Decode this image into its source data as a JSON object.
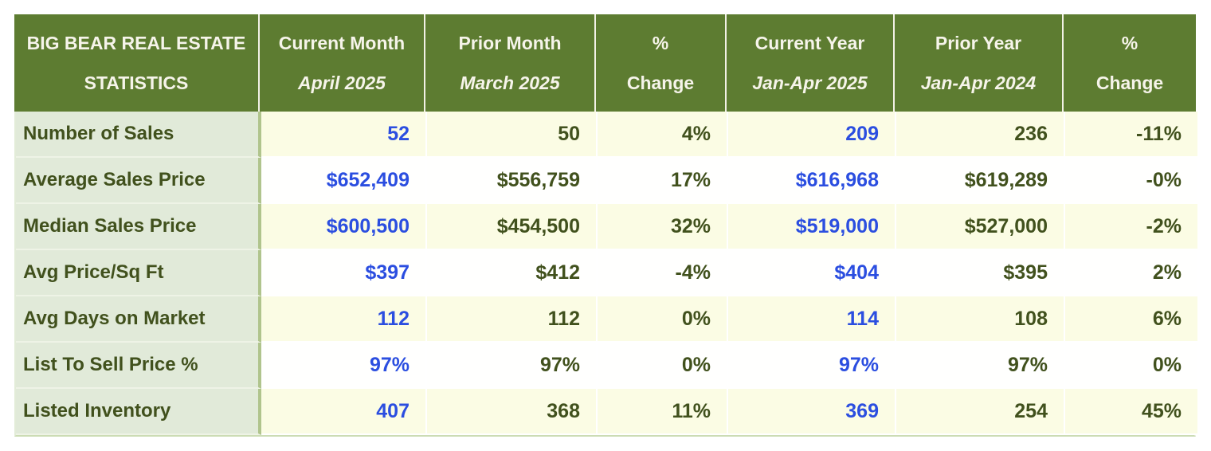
{
  "table": {
    "header": {
      "title_line1": "BIG BEAR REAL ESTATE",
      "title_line2": "STATISTICS",
      "columns": [
        {
          "label": "Current Month",
          "sub": "April 2025"
        },
        {
          "label": "Prior Month",
          "sub": "March 2025"
        },
        {
          "label": "%",
          "sub": "Change"
        },
        {
          "label": "Current Year",
          "sub": "Jan-Apr 2025"
        },
        {
          "label": "Prior Year",
          "sub": "Jan-Apr 2024"
        },
        {
          "label": "%",
          "sub": "Change"
        }
      ]
    },
    "rows": [
      {
        "label": "Number of Sales",
        "current_month": "52",
        "prior_month": "50",
        "pct_change_month": "4%",
        "current_year": "209",
        "prior_year": "236",
        "pct_change_year": "-11%"
      },
      {
        "label": "Average Sales Price",
        "current_month": "$652,409",
        "prior_month": "$556,759",
        "pct_change_month": "17%",
        "current_year": "$616,968",
        "prior_year": "$619,289",
        "pct_change_year": "-0%"
      },
      {
        "label": "Median Sales Price",
        "current_month": "$600,500",
        "prior_month": "$454,500",
        "pct_change_month": "32%",
        "current_year": "$519,000",
        "prior_year": "$527,000",
        "pct_change_year": "-2%"
      },
      {
        "label": "Avg Price/Sq Ft",
        "current_month": "$397",
        "prior_month": "$412",
        "pct_change_month": "-4%",
        "current_year": "$404",
        "prior_year": "$395",
        "pct_change_year": "2%"
      },
      {
        "label": "Avg Days on Market",
        "current_month": "112",
        "prior_month": "112",
        "pct_change_month": "0%",
        "current_year": "114",
        "prior_year": "108",
        "pct_change_year": "6%"
      },
      {
        "label": "List To Sell Price %",
        "current_month": "97%",
        "prior_month": "97%",
        "pct_change_month": "0%",
        "current_year": "97%",
        "prior_year": "97%",
        "pct_change_year": "0%"
      },
      {
        "label": "Listed Inventory",
        "current_month": "407",
        "prior_month": "368",
        "pct_change_month": "11%",
        "current_year": "369",
        "prior_year": "254",
        "pct_change_year": "45%"
      }
    ]
  },
  "colors": {
    "header_background": "#5d7c31",
    "header_text": "#f6f4ea",
    "label_column_background": "#e1ead9",
    "label_divider_green": "#b0c48d",
    "row_cream": "#fbfce4",
    "row_white": "#fffffe",
    "value_dark_green": "#41511d",
    "value_blue": "#2b4ee0"
  },
  "chart_data": {
    "type": "table",
    "title": "BIG BEAR REAL ESTATE STATISTICS",
    "columns": [
      "BIG BEAR REAL ESTATE STATISTICS",
      "Current Month April 2025",
      "Prior Month March 2025",
      "% Change",
      "Current Year Jan-Apr 2025",
      "Prior Year Jan-Apr 2024",
      "% Change"
    ],
    "rows": [
      [
        "Number of Sales",
        "52",
        "50",
        "4%",
        "209",
        "236",
        "-11%"
      ],
      [
        "Average Sales Price",
        "$652,409",
        "$556,759",
        "17%",
        "$616,968",
        "$619,289",
        "-0%"
      ],
      [
        "Median Sales Price",
        "$600,500",
        "$454,500",
        "32%",
        "$519,000",
        "$527,000",
        "-2%"
      ],
      [
        "Avg Price/Sq Ft",
        "$397",
        "$412",
        "-4%",
        "$404",
        "$395",
        "2%"
      ],
      [
        "Avg Days on Market",
        "112",
        "112",
        "0%",
        "114",
        "108",
        "6%"
      ],
      [
        "List To Sell Price %",
        "97%",
        "97%",
        "0%",
        "97%",
        "97%",
        "0%"
      ],
      [
        "Listed Inventory",
        "407",
        "368",
        "11%",
        "369",
        "254",
        "45%"
      ]
    ]
  }
}
